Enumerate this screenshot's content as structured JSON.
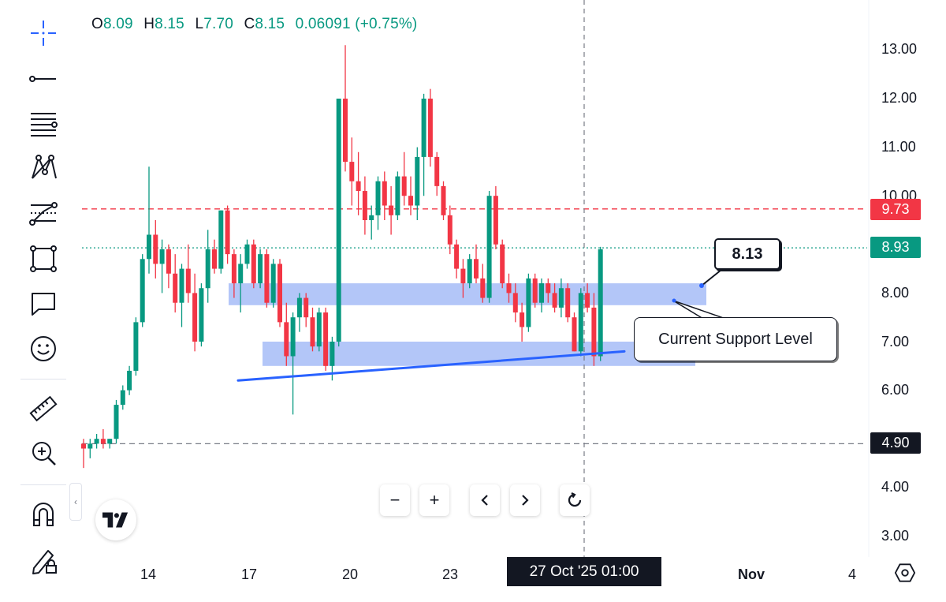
{
  "legend": {
    "o_label": "O",
    "o_value": "8.09",
    "h_label": "H",
    "h_value": "8.15",
    "l_label": "L",
    "l_value": "7.70",
    "c_label": "C",
    "c_value": "8.15",
    "change": "0.06091 (+0.75%)"
  },
  "toolbar": {
    "tools": [
      "crosshair-icon",
      "trend-line-icon",
      "fib-levels-icon",
      "pattern-icon",
      "forecast-icon",
      "shapes-icon",
      "annotation-icon",
      "emoji-icon",
      "ruler-icon",
      "zoom-in-icon",
      "magnet-icon",
      "lock-drawing-icon"
    ]
  },
  "price_axis": {
    "ticks": [
      "13.00",
      "12.00",
      "11.00",
      "10.00",
      "8.00",
      "7.00",
      "6.00",
      "4.00",
      "3.00"
    ],
    "tags": {
      "upper_line": {
        "label": "9.73",
        "color": "#f23645"
      },
      "current": {
        "label": "8.93",
        "color": "#089981"
      },
      "lower_line": {
        "label": "4.90",
        "color": "#131722"
      }
    }
  },
  "time_axis": {
    "ticks": [
      "14",
      "17",
      "20",
      "23",
      "Nov",
      "4"
    ],
    "crosshair_label": "27 Oct '25   01:00"
  },
  "annotations": {
    "price_label": "8.13",
    "support_label": "Current Support Level"
  },
  "nav": {
    "zoom_out": "−",
    "zoom_in": "+",
    "collapse": "‹"
  },
  "colors": {
    "up": "#089981",
    "down": "#f23645",
    "zone": "#a6bcf7",
    "trendline": "#2962ff"
  },
  "chart_data": {
    "type": "candlestick",
    "price_range": [
      3.0,
      13.2
    ],
    "horizontal_lines": [
      {
        "price": 9.73,
        "style": "dashed",
        "color": "#f23645"
      },
      {
        "price": 8.93,
        "style": "dotted",
        "color": "#089981"
      },
      {
        "price": 4.9,
        "style": "dashed",
        "color": "#787b86"
      }
    ],
    "zones": [
      {
        "from_price": 7.75,
        "to_price": 8.2
      },
      {
        "from_price": 6.5,
        "to_price": 7.0
      }
    ],
    "trendline": {
      "start_price": 6.2,
      "end_price": 6.8
    },
    "candles": [
      [
        4.9,
        5.0,
        4.4,
        4.8
      ],
      [
        4.8,
        5.0,
        4.6,
        4.9
      ],
      [
        4.9,
        5.1,
        4.8,
        5.0
      ],
      [
        5.0,
        5.2,
        4.8,
        4.9
      ],
      [
        4.9,
        5.0,
        4.8,
        5.0
      ],
      [
        5.0,
        5.8,
        4.9,
        5.7
      ],
      [
        5.7,
        6.1,
        5.6,
        6.0
      ],
      [
        6.0,
        6.5,
        5.9,
        6.4
      ],
      [
        6.4,
        7.5,
        6.3,
        7.4
      ],
      [
        7.4,
        8.8,
        7.3,
        8.7
      ],
      [
        8.7,
        10.6,
        8.4,
        9.2
      ],
      [
        9.2,
        9.5,
        8.3,
        8.6
      ],
      [
        8.6,
        9.1,
        8.0,
        8.9
      ],
      [
        8.9,
        9.0,
        8.1,
        8.4
      ],
      [
        8.4,
        8.8,
        7.6,
        7.8
      ],
      [
        7.8,
        8.6,
        7.3,
        8.5
      ],
      [
        8.5,
        9.0,
        7.8,
        8.0
      ],
      [
        8.0,
        8.4,
        6.8,
        7.0
      ],
      [
        7.0,
        8.2,
        6.9,
        8.1
      ],
      [
        8.1,
        9.3,
        7.8,
        8.9
      ],
      [
        8.9,
        9.1,
        8.4,
        8.5
      ],
      [
        8.5,
        9.7,
        8.4,
        9.7
      ],
      [
        9.7,
        9.8,
        8.6,
        8.8
      ],
      [
        8.8,
        8.9,
        7.9,
        8.2
      ],
      [
        8.2,
        8.8,
        7.6,
        8.6
      ],
      [
        8.6,
        9.1,
        8.5,
        9.0
      ],
      [
        9.0,
        9.1,
        8.1,
        8.2
      ],
      [
        8.2,
        8.9,
        8.1,
        8.8
      ],
      [
        8.8,
        8.9,
        7.7,
        7.8
      ],
      [
        7.8,
        8.7,
        7.7,
        8.6
      ],
      [
        8.6,
        8.7,
        7.3,
        7.4
      ],
      [
        7.4,
        7.8,
        6.5,
        6.7
      ],
      [
        6.7,
        7.6,
        5.5,
        7.5
      ],
      [
        7.5,
        8.0,
        7.2,
        7.9
      ],
      [
        7.9,
        8.0,
        7.3,
        7.5
      ],
      [
        7.5,
        7.7,
        6.8,
        6.9
      ],
      [
        6.9,
        7.7,
        6.8,
        7.6
      ],
      [
        7.6,
        7.7,
        6.4,
        6.5
      ],
      [
        6.5,
        7.1,
        6.2,
        7.0
      ],
      [
        7.0,
        12.0,
        6.9,
        12.0
      ],
      [
        12.0,
        13.1,
        10.5,
        10.7
      ],
      [
        10.7,
        11.2,
        9.8,
        10.3
      ],
      [
        10.3,
        10.9,
        9.6,
        10.1
      ],
      [
        10.1,
        10.4,
        9.2,
        9.5
      ],
      [
        9.5,
        9.8,
        9.1,
        9.6
      ],
      [
        9.6,
        10.4,
        9.3,
        10.3
      ],
      [
        10.3,
        10.5,
        9.5,
        9.8
      ],
      [
        9.8,
        10.2,
        9.2,
        9.6
      ],
      [
        9.6,
        10.5,
        9.5,
        10.4
      ],
      [
        10.4,
        10.9,
        9.8,
        10.0
      ],
      [
        10.0,
        10.4,
        9.6,
        9.8
      ],
      [
        9.8,
        11.0,
        9.5,
        10.8
      ],
      [
        10.8,
        12.1,
        10.0,
        12.0
      ],
      [
        12.0,
        12.2,
        10.6,
        10.8
      ],
      [
        10.8,
        10.9,
        10.0,
        10.2
      ],
      [
        10.2,
        10.3,
        9.5,
        9.6
      ],
      [
        9.6,
        9.8,
        8.8,
        9.0
      ],
      [
        9.0,
        9.1,
        8.3,
        8.5
      ],
      [
        8.5,
        8.7,
        7.9,
        8.2
      ],
      [
        8.2,
        8.8,
        8.1,
        8.7
      ],
      [
        8.7,
        9.0,
        8.2,
        8.3
      ],
      [
        8.3,
        8.6,
        7.8,
        7.9
      ],
      [
        7.9,
        10.1,
        7.8,
        10.0
      ],
      [
        10.0,
        10.2,
        8.9,
        9.0
      ],
      [
        9.0,
        9.1,
        8.1,
        8.2
      ],
      [
        8.2,
        8.4,
        7.8,
        8.0
      ],
      [
        8.0,
        8.2,
        7.4,
        7.6
      ],
      [
        7.6,
        7.8,
        7.0,
        7.3
      ],
      [
        7.3,
        8.4,
        7.2,
        8.3
      ],
      [
        8.3,
        8.4,
        7.7,
        7.8
      ],
      [
        7.8,
        8.3,
        7.6,
        8.2
      ],
      [
        8.2,
        8.3,
        7.8,
        8.0
      ],
      [
        8.0,
        8.2,
        7.6,
        7.7
      ],
      [
        7.7,
        8.3,
        7.5,
        8.1
      ],
      [
        8.1,
        8.2,
        7.4,
        7.5
      ],
      [
        7.5,
        7.6,
        6.8,
        6.8
      ],
      [
        6.8,
        8.1,
        6.7,
        8.0
      ],
      [
        8.0,
        8.2,
        7.6,
        7.7
      ],
      [
        7.7,
        8.0,
        6.5,
        6.7
      ],
      [
        6.7,
        8.95,
        6.6,
        8.9
      ]
    ]
  }
}
